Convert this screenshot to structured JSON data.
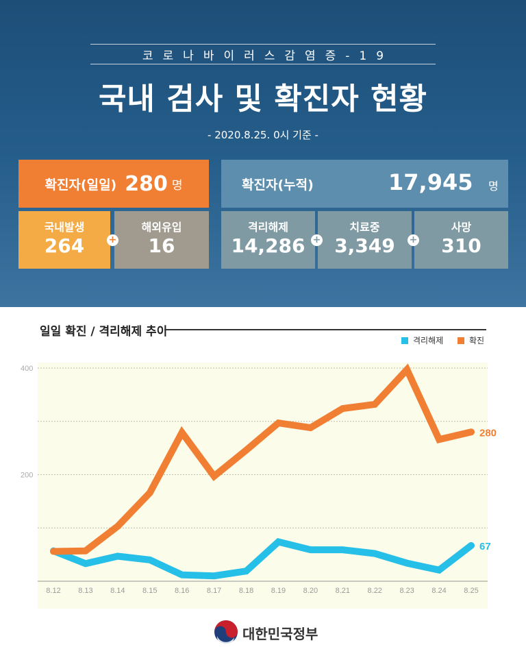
{
  "header": {
    "subtitle": "코로나바이러스감염증-19",
    "title": "국내 검사 및 확진자 현황",
    "date": "- 2020.8.25. 0시 기준 -"
  },
  "stats": {
    "daily": {
      "label": "확진자(일일)",
      "value": "280",
      "unit": "명"
    },
    "cumulative": {
      "label": "확진자(누적)",
      "value": "17,945",
      "unit": "명"
    },
    "domestic": {
      "label": "국내발생",
      "value": "264"
    },
    "overseas": {
      "label": "해외유입",
      "value": "16"
    },
    "released": {
      "label": "격리해제",
      "value": "14,286"
    },
    "treating": {
      "label": "치료중",
      "value": "3,349"
    },
    "deaths": {
      "label": "사망",
      "value": "310"
    },
    "plus_symbol": "+"
  },
  "chart_data": {
    "type": "line",
    "title": "일일 확진 / 격리해제 추이",
    "categories": [
      "8.12",
      "8.13",
      "8.14",
      "8.15",
      "8.16",
      "8.17",
      "8.18",
      "8.19",
      "8.20",
      "8.21",
      "8.22",
      "8.23",
      "8.24",
      "8.25"
    ],
    "ylim": [
      0,
      400
    ],
    "yticks": [
      200,
      400
    ],
    "series": [
      {
        "name": "격리해제",
        "color": "#26bfe8",
        "values": [
          57,
          33,
          47,
          40,
          12,
          10,
          19,
          74,
          59,
          59,
          52,
          34,
          21,
          67
        ],
        "end_label": "67"
      },
      {
        "name": "확진",
        "color": "#f07f34",
        "values": [
          56,
          57,
          103,
          166,
          279,
          197,
          246,
          297,
          288,
          324,
          332,
          397,
          266,
          280
        ],
        "end_label": "280"
      }
    ],
    "legend_position": "top-right",
    "grid": true,
    "plot_background": "#fcfceb"
  },
  "footer": {
    "org": "대한민국정부"
  },
  "colors": {
    "header_bg": "#255d8a",
    "orange": "#f07f34",
    "yellow": "#f4ab45",
    "blue": "#26bfe8"
  }
}
